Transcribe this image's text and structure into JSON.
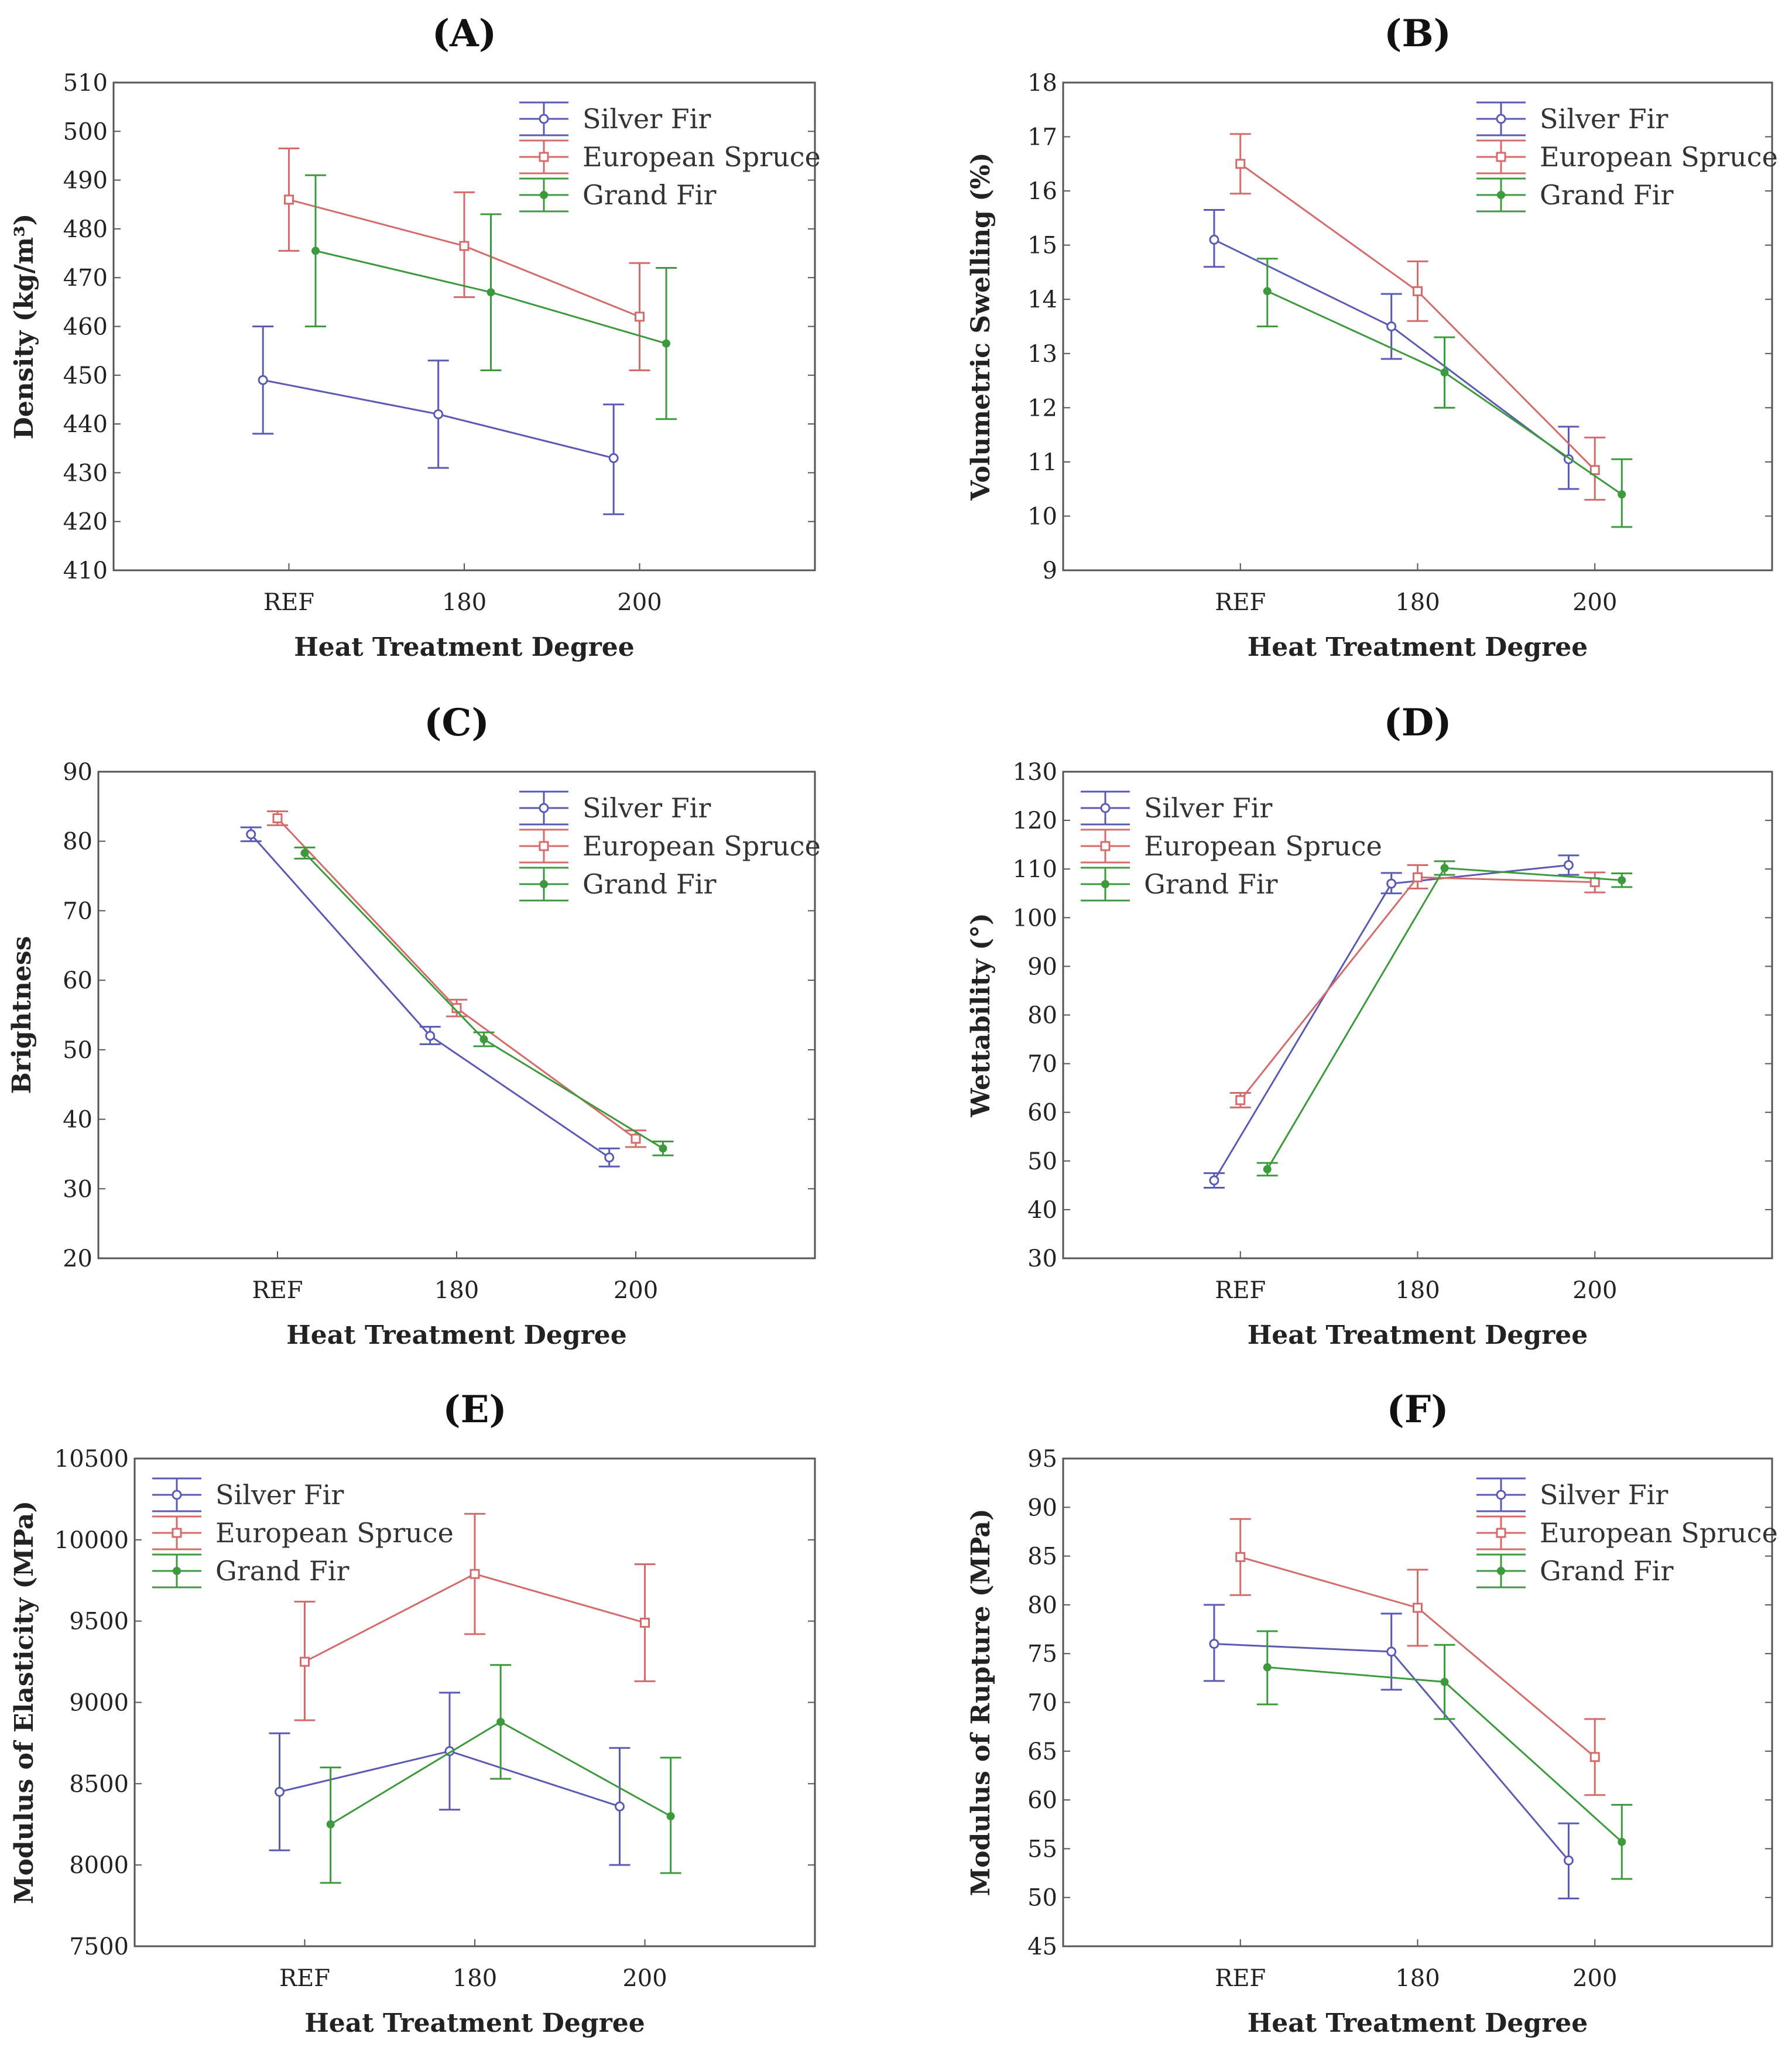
{
  "colors": {
    "Silver Fir": "#5a5ab4",
    "European Spruce": "#d46a6a",
    "Grand Fir": "#3c9a3c",
    "axis": "#555555"
  },
  "chart_data": [
    {
      "type": "line",
      "panel": "(A)",
      "title_letter": "A",
      "xlabel": "Heat Treatment Degree",
      "ylabel": "Density (kg/m³)",
      "categories": [
        "REF",
        "180",
        "200"
      ],
      "ylim": [
        410,
        510
      ],
      "yticks": [
        410,
        420,
        430,
        440,
        450,
        460,
        470,
        480,
        490,
        500,
        510
      ],
      "legend": "top-right",
      "series": [
        {
          "name": "Silver Fir",
          "marker": "circle",
          "values": [
            449,
            442,
            433
          ],
          "lower": [
            438,
            431,
            421.5
          ],
          "upper": [
            460,
            453,
            444
          ]
        },
        {
          "name": "European Spruce",
          "marker": "square",
          "values": [
            486,
            476.5,
            462
          ],
          "lower": [
            475.5,
            466,
            451
          ],
          "upper": [
            496.5,
            487.5,
            473
          ]
        },
        {
          "name": "Grand Fir",
          "marker": "diamond",
          "values": [
            475.5,
            467,
            456.5
          ],
          "lower": [
            460,
            451,
            441
          ],
          "upper": [
            491,
            483,
            472
          ]
        }
      ]
    },
    {
      "type": "line",
      "panel": "(B)",
      "title_letter": "B",
      "xlabel": "Heat Treatment Degree",
      "ylabel": "Volumetric Swelling (%)",
      "categories": [
        "REF",
        "180",
        "200"
      ],
      "ylim": [
        9,
        18
      ],
      "yticks": [
        9,
        10,
        11,
        12,
        13,
        14,
        15,
        16,
        17,
        18
      ],
      "legend": "top-right",
      "series": [
        {
          "name": "Silver Fir",
          "marker": "circle",
          "values": [
            15.1,
            13.5,
            11.05
          ],
          "lower": [
            14.6,
            12.9,
            10.5
          ],
          "upper": [
            15.65,
            14.1,
            11.65
          ]
        },
        {
          "name": "European Spruce",
          "marker": "square",
          "values": [
            16.5,
            14.15,
            10.85
          ],
          "lower": [
            15.95,
            13.6,
            10.3
          ],
          "upper": [
            17.05,
            14.7,
            11.45
          ]
        },
        {
          "name": "Grand Fir",
          "marker": "diamond",
          "values": [
            14.15,
            12.65,
            10.4
          ],
          "lower": [
            13.5,
            12.0,
            9.8
          ],
          "upper": [
            14.75,
            13.3,
            11.05
          ]
        }
      ]
    },
    {
      "type": "line",
      "panel": "(C)",
      "title_letter": "C",
      "xlabel": "Heat Treatment Degree",
      "ylabel": "Brightness",
      "categories": [
        "REF",
        "180",
        "200"
      ],
      "ylim": [
        20,
        90
      ],
      "yticks": [
        20,
        30,
        40,
        50,
        60,
        70,
        80,
        90
      ],
      "legend": "top-right",
      "series": [
        {
          "name": "Silver Fir",
          "marker": "circle",
          "values": [
            81,
            52,
            34.5
          ],
          "lower": [
            80,
            50.8,
            33.2
          ],
          "upper": [
            82,
            53.3,
            35.8
          ]
        },
        {
          "name": "European Spruce",
          "marker": "square",
          "values": [
            83.3,
            56,
            37.2
          ],
          "lower": [
            82.3,
            54.8,
            36
          ],
          "upper": [
            84.3,
            57.2,
            38.4
          ]
        },
        {
          "name": "Grand Fir",
          "marker": "diamond",
          "values": [
            78.3,
            51.5,
            35.8
          ],
          "lower": [
            77.5,
            50.5,
            34.8
          ],
          "upper": [
            79.1,
            52.5,
            36.8
          ]
        }
      ]
    },
    {
      "type": "line",
      "panel": "(D)",
      "title_letter": "D",
      "xlabel": "Heat Treatment Degree",
      "ylabel": "Wettability (°)",
      "categories": [
        "REF",
        "180",
        "200"
      ],
      "ylim": [
        30,
        130
      ],
      "yticks": [
        30,
        40,
        50,
        60,
        70,
        80,
        90,
        100,
        110,
        120,
        130
      ],
      "legend": "top-left",
      "series": [
        {
          "name": "Silver Fir",
          "marker": "circle",
          "values": [
            46,
            107,
            110.8
          ],
          "lower": [
            44.5,
            105,
            108.8
          ],
          "upper": [
            47.5,
            109.2,
            112.8
          ]
        },
        {
          "name": "European Spruce",
          "marker": "square",
          "values": [
            62.5,
            108.3,
            107.3
          ],
          "lower": [
            61,
            106,
            105.2
          ],
          "upper": [
            64,
            110.8,
            109.3
          ]
        },
        {
          "name": "Grand Fir",
          "marker": "diamond",
          "values": [
            48.3,
            110.2,
            107.7
          ],
          "lower": [
            47,
            108.8,
            106.3
          ],
          "upper": [
            49.6,
            111.6,
            109.1
          ]
        }
      ]
    },
    {
      "type": "line",
      "panel": "(E)",
      "title_letter": "E",
      "xlabel": "Heat Treatment Degree",
      "ylabel": "Modulus of Elasticity (MPa)",
      "categories": [
        "REF",
        "180",
        "200"
      ],
      "ylim": [
        7500,
        10500
      ],
      "yticks": [
        7500,
        8000,
        8500,
        9000,
        9500,
        10000,
        10500
      ],
      "legend": "top-left",
      "series": [
        {
          "name": "Silver Fir",
          "marker": "circle",
          "values": [
            8450,
            8700,
            8360
          ],
          "lower": [
            8090,
            8340,
            8000
          ],
          "upper": [
            8810,
            9060,
            8720
          ]
        },
        {
          "name": "European Spruce",
          "marker": "square",
          "values": [
            9250,
            9790,
            9490
          ],
          "lower": [
            8890,
            9420,
            9130
          ],
          "upper": [
            9620,
            10160,
            9850
          ]
        },
        {
          "name": "Grand Fir",
          "marker": "diamond",
          "values": [
            8250,
            8880,
            8300
          ],
          "lower": [
            7890,
            8530,
            7950
          ],
          "upper": [
            8600,
            9230,
            8660
          ]
        }
      ]
    },
    {
      "type": "line",
      "panel": "(F)",
      "title_letter": "F",
      "xlabel": "Heat Treatment Degree",
      "ylabel": "Modulus of Rupture (MPa)",
      "categories": [
        "REF",
        "180",
        "200"
      ],
      "ylim": [
        45,
        95
      ],
      "yticks": [
        45,
        50,
        55,
        60,
        65,
        70,
        75,
        80,
        85,
        90,
        95
      ],
      "legend": "top-right",
      "series": [
        {
          "name": "Silver Fir",
          "marker": "circle",
          "values": [
            76,
            75.2,
            53.8
          ],
          "lower": [
            72.2,
            71.3,
            49.9
          ],
          "upper": [
            80,
            79.1,
            57.6
          ]
        },
        {
          "name": "European Spruce",
          "marker": "square",
          "values": [
            84.9,
            79.7,
            64.4
          ],
          "lower": [
            81,
            75.8,
            60.5
          ],
          "upper": [
            88.8,
            83.6,
            68.3
          ]
        },
        {
          "name": "Grand Fir",
          "marker": "diamond",
          "values": [
            73.6,
            72.1,
            55.7
          ],
          "lower": [
            69.8,
            68.3,
            51.9
          ],
          "upper": [
            77.3,
            75.9,
            59.5
          ]
        }
      ]
    }
  ]
}
